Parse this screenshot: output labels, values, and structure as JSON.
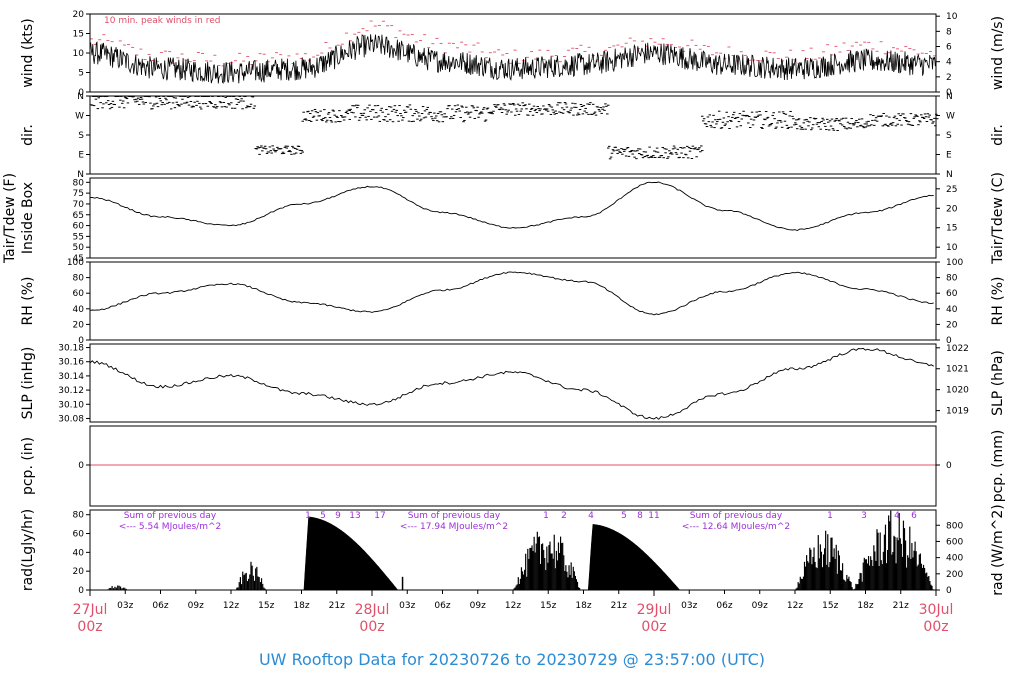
{
  "title": "UW Rooftop Data for 20230726  to  20230729 @ 23:57:00  (UTC)",
  "chart_data": [
    {
      "type": "line",
      "id": "wind",
      "ylabel_left": "wind (kts)",
      "ylabel_right": "wind (m/s)",
      "ylim": [
        0,
        20
      ],
      "yticks_left": [
        0,
        5,
        10,
        15,
        20
      ],
      "yticks_right": [
        0,
        2,
        4,
        6,
        8,
        10
      ],
      "annotation": "10 min. peak winds in red",
      "series": [
        {
          "color": "#000000",
          "x_hours": [
            0,
            6,
            12,
            18,
            24,
            30,
            36,
            42,
            48,
            54,
            60,
            66,
            72
          ],
          "y": [
            10,
            6,
            5,
            6,
            12,
            8,
            6,
            7,
            10,
            7,
            6,
            8,
            7
          ]
        },
        {
          "color": "#e0506a",
          "x_hours": [
            0,
            6,
            12,
            18,
            24,
            30,
            36,
            42,
            48,
            54,
            60,
            66,
            72
          ],
          "y": [
            13,
            9,
            8,
            9,
            17,
            12,
            9,
            10,
            13,
            10,
            9,
            12,
            10
          ]
        }
      ]
    },
    {
      "type": "scatter",
      "id": "dir",
      "ylabel_left": "dir.",
      "ylabel_right": "dir.",
      "yticks_left": [
        "N",
        "E",
        "S",
        "W",
        "N"
      ],
      "yticks_right": [
        "N",
        "E",
        "S",
        "W",
        "N"
      ]
    },
    {
      "type": "line",
      "id": "temp",
      "ylabel_left": "Tair/Tdew (F)",
      "ylabel_left2": "Inside Box",
      "ylabel_right": "Tair/Tdew (C)",
      "ylim": [
        45,
        82
      ],
      "yticks_left": [
        45,
        50,
        55,
        60,
        65,
        70,
        75,
        80
      ],
      "yticks_right": [
        10,
        15,
        20,
        25
      ],
      "series": [
        {
          "color": "#000000",
          "x_hours": [
            0,
            6,
            12,
            18,
            24,
            30,
            36,
            42,
            48,
            54,
            60,
            66,
            72
          ],
          "y": [
            73,
            64,
            60,
            70,
            78,
            66,
            59,
            64,
            80,
            67,
            58,
            66,
            74
          ]
        }
      ]
    },
    {
      "type": "line",
      "id": "rh",
      "ylabel_left": "RH (%)",
      "ylabel_right": "RH (%)",
      "ylim": [
        0,
        100
      ],
      "yticks_left": [
        0,
        20,
        40,
        60,
        80,
        100
      ],
      "yticks_right": [
        0,
        20,
        40,
        60,
        80,
        100
      ],
      "series": [
        {
          "color": "#000000",
          "x_hours": [
            0,
            6,
            12,
            18,
            24,
            30,
            36,
            42,
            48,
            54,
            60,
            66,
            72
          ],
          "y": [
            38,
            60,
            72,
            48,
            36,
            64,
            87,
            75,
            33,
            62,
            86,
            65,
            47
          ]
        }
      ]
    },
    {
      "type": "line",
      "id": "slp",
      "ylabel_left": "SLP (inHg)",
      "ylabel_right": "SLP (hPa)",
      "ylim": [
        30.075,
        30.185
      ],
      "yticks_left": [
        "30.08",
        "30.10",
        "30.12",
        "30.14",
        "30.16",
        "30.18"
      ],
      "yticks_right": [
        "1019",
        "1020",
        "1021",
        "1022"
      ],
      "series": [
        {
          "color": "#000000",
          "x_hours": [
            0,
            6,
            12,
            18,
            24,
            30,
            36,
            42,
            48,
            54,
            60,
            66,
            72
          ],
          "y": [
            30.16,
            30.125,
            30.14,
            30.115,
            30.1,
            30.13,
            30.145,
            30.12,
            30.08,
            30.115,
            30.15,
            30.178,
            30.155
          ]
        }
      ]
    },
    {
      "type": "line",
      "id": "pcp",
      "ylabel_left": "pcp. (in)",
      "ylabel_right": "pcp. (mm)",
      "yticks_left": [
        0
      ],
      "yticks_right": [
        0
      ],
      "series": [
        {
          "color": "#e0506a",
          "x_hours": [
            0,
            72
          ],
          "y": [
            0,
            0
          ]
        }
      ]
    },
    {
      "type": "area",
      "id": "rad",
      "ylabel_left": "rad(Lgly/hr)",
      "ylabel_right": "rad (W/m^2)",
      "ylim": [
        0,
        85
      ],
      "yticks_left": [
        0,
        20,
        40,
        60,
        80
      ],
      "yticks_right": [
        0,
        200,
        400,
        600,
        800
      ],
      "annotations": [
        {
          "line1": "Sum of previous day",
          "line2": "<--- 5.54 MJoules/m^2"
        },
        {
          "line1": "Sum of previous day",
          "line2": "<--- 17.94 MJoules/m^2"
        },
        {
          "line1": "Sum of previous day",
          "line2": "<--- 12.64 MJoules/m^2"
        }
      ],
      "sun_hour_labels": [
        "1",
        "5",
        "9",
        "13",
        "17",
        "1",
        "2",
        "4",
        "5",
        "8",
        "11",
        "1",
        "3",
        "4",
        "6"
      ]
    }
  ],
  "x_axis": {
    "hour_labels": [
      "03z",
      "06z",
      "09z",
      "12z",
      "15z",
      "18z",
      "21z",
      "03z",
      "06z",
      "09z",
      "12z",
      "15z",
      "18z",
      "21z",
      "03z",
      "06z",
      "09z",
      "12z",
      "15z",
      "18z",
      "21z"
    ],
    "day_labels": [
      {
        "date": "27Jul",
        "time": "00z"
      },
      {
        "date": "28Jul",
        "time": "00z"
      },
      {
        "date": "29Jul",
        "time": "00z"
      },
      {
        "date": "30Jul",
        "time": "00z"
      }
    ]
  }
}
